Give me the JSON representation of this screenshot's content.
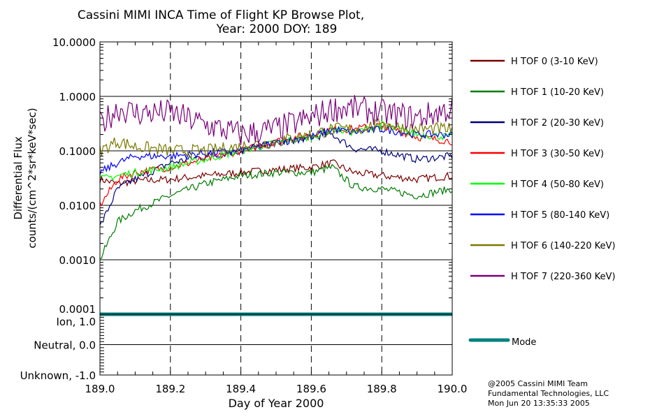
{
  "chart_data": {
    "type": "line",
    "title": "Cassini MIMI INCA Time of Flight KP Browse Plot,",
    "subtitle": "Year: 2000 DOY: 189",
    "xlabel": "Day of Year 2000",
    "ylabel": [
      "Differential Flux",
      "counts/(cm^2*sr*keV*sec)"
    ],
    "xlim": [
      189.0,
      190.0
    ],
    "ylim": [
      0.0001,
      10.0
    ],
    "yscale": "log",
    "x_ticks": [
      "189.0",
      "189.2",
      "189.4",
      "189.6",
      "189.8",
      "190.0"
    ],
    "y_ticks": [
      "10.0000",
      "1.0000",
      "0.1000",
      "0.0100",
      "0.0010",
      "0.0001"
    ],
    "grid": "dashed vertical at 0.2 day, solid horizontal at decades",
    "legend_placement": "right",
    "x": [
      189.0,
      189.05,
      189.1,
      189.2,
      189.3,
      189.4,
      189.5,
      189.6,
      189.66,
      189.72,
      189.8,
      189.9,
      190.0
    ],
    "series": [
      {
        "name": "H TOF 0 (3-10 KeV)",
        "color": "#7a0000",
        "values": [
          0.03,
          0.025,
          0.028,
          0.03,
          0.035,
          0.04,
          0.045,
          0.05,
          0.06,
          0.04,
          0.035,
          0.03,
          0.035
        ]
      },
      {
        "name": "H TOF 1 (10-20 KeV)",
        "color": "#007a00",
        "values": [
          0.001,
          0.005,
          0.008,
          0.015,
          0.025,
          0.035,
          0.04,
          0.04,
          0.05,
          0.022,
          0.02,
          0.015,
          0.02
        ]
      },
      {
        "name": "H TOF 2 (20-30 KeV)",
        "color": "#00007a",
        "values": [
          0.004,
          0.02,
          0.03,
          0.06,
          0.08,
          0.1,
          0.14,
          0.18,
          0.2,
          0.11,
          0.1,
          0.07,
          0.08
        ]
      },
      {
        "name": "H TOF 3 (30-50 KeV)",
        "color": "#ff0000",
        "values": [
          0.01,
          0.03,
          0.04,
          0.05,
          0.07,
          0.1,
          0.15,
          0.2,
          0.25,
          0.25,
          0.3,
          0.18,
          0.15
        ]
      },
      {
        "name": "H TOF 4 (50-80 KeV)",
        "color": "#00ff00",
        "values": [
          0.03,
          0.035,
          0.04,
          0.05,
          0.07,
          0.1,
          0.14,
          0.18,
          0.25,
          0.22,
          0.3,
          0.2,
          0.18
        ]
      },
      {
        "name": "H TOF 5 (80-140 KeV)",
        "color": "#0000ff",
        "values": [
          0.04,
          0.06,
          0.08,
          0.08,
          0.09,
          0.1,
          0.14,
          0.18,
          0.25,
          0.22,
          0.25,
          0.2,
          0.2
        ]
      },
      {
        "name": "H TOF 6 (140-220 KeV)",
        "color": "#7a7a00",
        "values": [
          0.1,
          0.15,
          0.12,
          0.1,
          0.1,
          0.12,
          0.15,
          0.2,
          0.25,
          0.25,
          0.3,
          0.25,
          0.25
        ]
      },
      {
        "name": "H TOF 7 (220-360 KeV)",
        "color": "#7a007a",
        "values": [
          0.3,
          0.6,
          0.5,
          0.5,
          0.3,
          0.2,
          0.25,
          0.4,
          0.6,
          0.6,
          0.5,
          0.4,
          0.6
        ]
      }
    ],
    "mode_panel": {
      "y_ticks": [
        "Ion, 1.0",
        "Neutral, 0.0",
        "Unknown, -1.0"
      ],
      "ylim": [
        -1.0,
        1.0
      ],
      "series": {
        "name": "Mode",
        "color": "#008080",
        "value": 1.0
      }
    }
  },
  "footer": {
    "line1": "@2005 Cassini MIMI Team",
    "line2": "Fundamental Technologies, LLC",
    "line3": "Mon Jun 20 13:35:33 2005"
  }
}
